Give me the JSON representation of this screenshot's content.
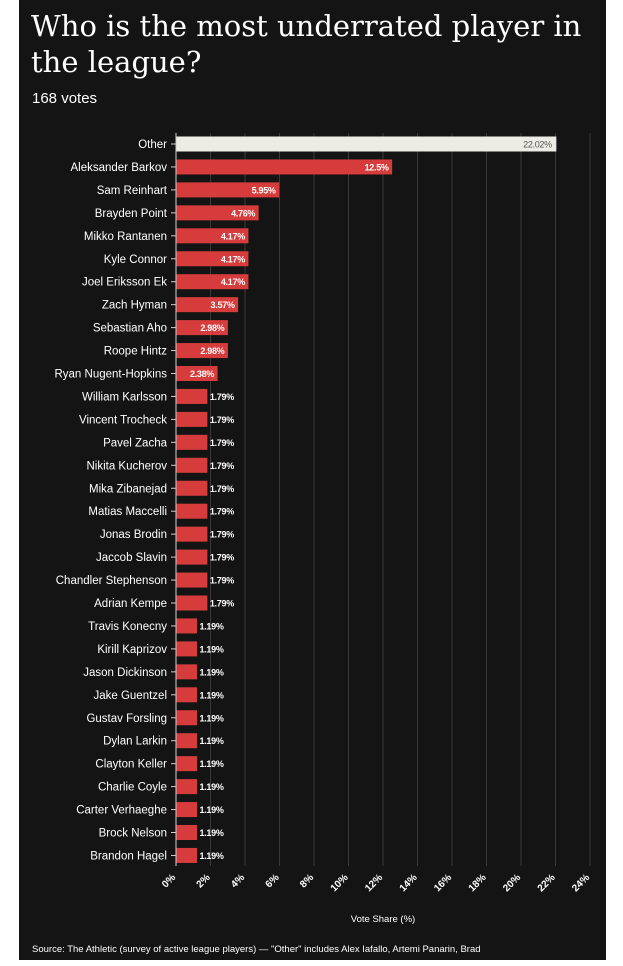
{
  "chart_data": {
    "type": "bar",
    "orientation": "horizontal",
    "title": "Who is the most underrated player in the league?",
    "subtitle": "168 votes",
    "xlabel": "Vote Share (%)",
    "ylabel": "",
    "xlim": [
      0,
      24
    ],
    "xticks": [
      "0%",
      "2%",
      "4%",
      "6%",
      "8%",
      "10%",
      "12%",
      "14%",
      "16%",
      "18%",
      "20%",
      "22%",
      "24%"
    ],
    "grid": true,
    "source": "Source: The Athletic (survey of active league players) — \"Other\" includes Alex Iafallo, Artemi Panarin, Brad",
    "colors": {
      "bar": "#d63c3c",
      "other": "#ecebe4",
      "background": "#141414",
      "grid": "#3a3a3a",
      "text": "#ffffff",
      "other_label": "#555555"
    },
    "categories": [
      "Other",
      "Aleksander Barkov",
      "Sam Reinhart",
      "Brayden Point",
      "Mikko Rantanen",
      "Kyle Connor",
      "Joel Eriksson Ek",
      "Zach Hyman",
      "Sebastian Aho",
      "Roope Hintz",
      "Ryan Nugent-Hopkins",
      "William Karlsson",
      "Vincent Trocheck",
      "Pavel Zacha",
      "Nikita Kucherov",
      "Mika Zibanejad",
      "Matias Maccelli",
      "Jonas Brodin",
      "Jaccob Slavin",
      "Chandler Stephenson",
      "Adrian Kempe",
      "Travis Konecny",
      "Kirill Kaprizov",
      "Jason Dickinson",
      "Jake Guentzel",
      "Gustav Forsling",
      "Dylan Larkin",
      "Clayton Keller",
      "Charlie Coyle",
      "Carter Verhaeghe",
      "Brock Nelson",
      "Brandon Hagel"
    ],
    "values": [
      22.02,
      12.5,
      5.95,
      4.76,
      4.17,
      4.17,
      4.17,
      3.57,
      2.98,
      2.98,
      2.38,
      1.79,
      1.79,
      1.79,
      1.79,
      1.79,
      1.79,
      1.79,
      1.79,
      1.79,
      1.79,
      1.19,
      1.19,
      1.19,
      1.19,
      1.19,
      1.19,
      1.19,
      1.19,
      1.19,
      1.19,
      1.19
    ],
    "labels": [
      "22.02%",
      "12.5%",
      "5.95%",
      "4.76%",
      "4.17%",
      "4.17%",
      "4.17%",
      "3.57%",
      "2.98%",
      "2.98%",
      "2.38%",
      "1.79%",
      "1.79%",
      "1.79%",
      "1.79%",
      "1.79%",
      "1.79%",
      "1.79%",
      "1.79%",
      "1.79%",
      "1.79%",
      "1.19%",
      "1.19%",
      "1.19%",
      "1.19%",
      "1.19%",
      "1.19%",
      "1.19%",
      "1.19%",
      "1.19%",
      "1.19%",
      "1.19%"
    ]
  }
}
